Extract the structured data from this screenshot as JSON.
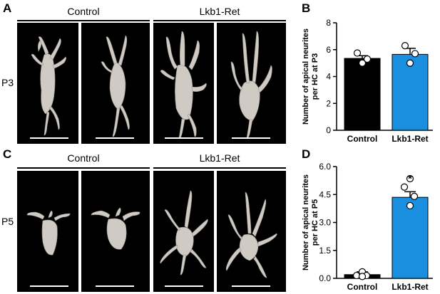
{
  "panels": {
    "A": "A",
    "B": "B",
    "C": "C",
    "D": "D"
  },
  "microscopy": {
    "top": {
      "left_group": "Control",
      "right_group": "Lkb1-Ret",
      "row_label": "P3"
    },
    "bottom": {
      "left_group": "Control",
      "right_group": "Lkb1-Ret",
      "row_label": "P5"
    }
  },
  "chart_data": [
    {
      "type": "bar",
      "panel": "B",
      "categories": [
        "Control",
        "Lkb1-Ret"
      ],
      "values": [
        5.35,
        5.65
      ],
      "errors": [
        0.2,
        0.45
      ],
      "points": [
        [
          5.75,
          5.3,
          5.0
        ],
        [
          6.3,
          5.7,
          5.0
        ]
      ],
      "bar_colors": [
        "#000000",
        "#1a8fe0"
      ],
      "ylabel": "Number of apical neurites per HC at P3",
      "ylim": [
        0,
        8
      ],
      "yticks": [
        "0",
        "2",
        "4",
        "6",
        "8"
      ],
      "significance": ""
    },
    {
      "type": "bar",
      "panel": "D",
      "categories": [
        "Control",
        "Lkb1-Ret"
      ],
      "values": [
        0.2,
        4.35
      ],
      "errors": [
        0.15,
        0.3
      ],
      "points": [
        [
          0.35,
          0.15,
          0.15,
          0.1
        ],
        [
          5.35,
          4.9,
          4.4,
          3.9
        ]
      ],
      "bar_colors": [
        "#000000",
        "#1a8fe0"
      ],
      "ylabel": "Number of apical neurites per HC at P5",
      "ylim": [
        0,
        6
      ],
      "yticks": [
        "0.0",
        "1.5",
        "3.0",
        "4.5",
        "6.0"
      ],
      "significance": "*"
    }
  ]
}
